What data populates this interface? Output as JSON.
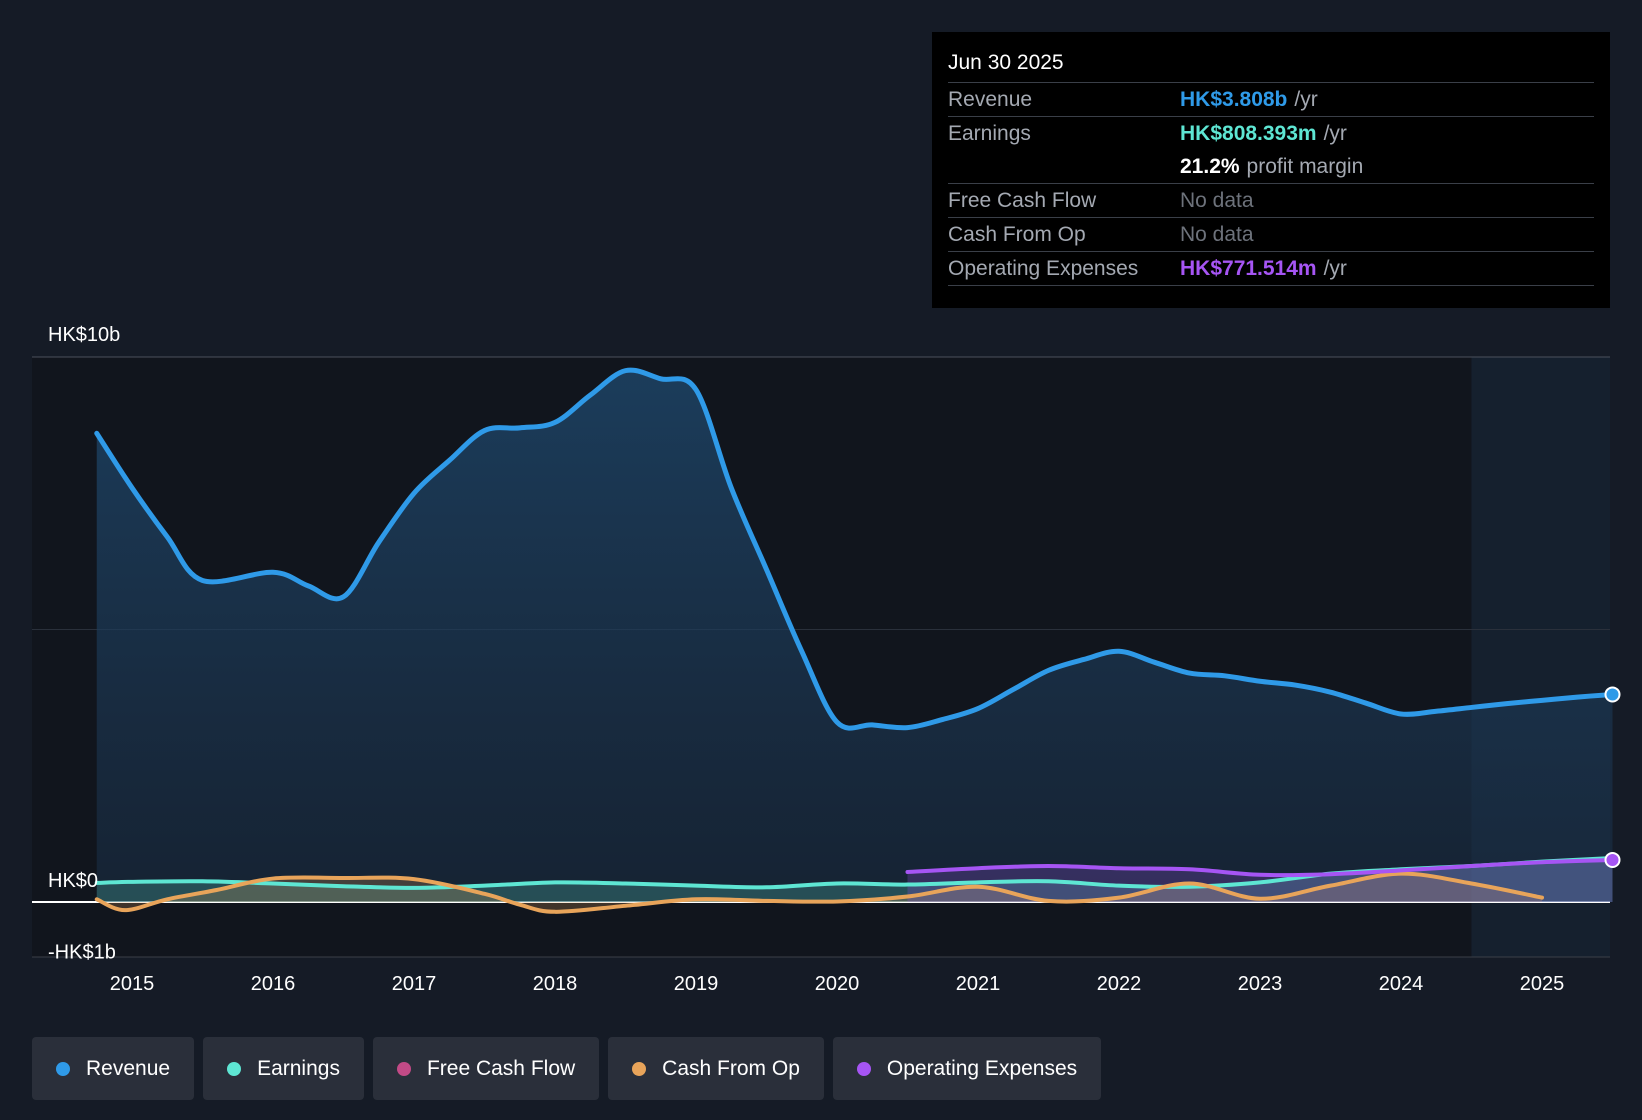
{
  "tooltip": {
    "date": "Jun 30 2025",
    "rows": [
      {
        "label": "Revenue",
        "value": "HK$3.808b",
        "unit": "/yr",
        "color": "#2f9ae8"
      },
      {
        "label": "Earnings",
        "value": "HK$808.393m",
        "unit": "/yr",
        "color": "#5ee6d3"
      },
      {
        "label": "",
        "value": "21.2%",
        "unit": "profit margin",
        "color": "#ffffff"
      },
      {
        "label": "Free Cash Flow",
        "value": "No data",
        "unit": "",
        "color": "#6d727b"
      },
      {
        "label": "Cash From Op",
        "value": "No data",
        "unit": "",
        "color": "#6d727b"
      },
      {
        "label": "Operating Expenses",
        "value": "HK$771.514m",
        "unit": "/yr",
        "color": "#a655f4"
      }
    ]
  },
  "legend": [
    {
      "label": "Revenue",
      "color": "#2f9ae8"
    },
    {
      "label": "Earnings",
      "color": "#5ee6d3"
    },
    {
      "label": "Free Cash Flow",
      "color": "#c24a86"
    },
    {
      "label": "Cash From Op",
      "color": "#e8a45a"
    },
    {
      "label": "Operating Expenses",
      "color": "#a655f4"
    }
  ],
  "chart_data": {
    "type": "line",
    "y_tick_labels": [
      {
        "label": "HK$10b",
        "value": 10
      },
      {
        "label": "HK$0",
        "value": 0
      },
      {
        "label": "-HK$1b",
        "value": -1
      }
    ],
    "ylim": [
      -1,
      10
    ],
    "xlim": [
      2014.75,
      2025.5
    ],
    "x_ticks": [
      2015,
      2016,
      2017,
      2018,
      2019,
      2020,
      2021,
      2022,
      2023,
      2024,
      2025
    ],
    "forecast_shading_start": 2024.5,
    "grid": "horizontal",
    "series": [
      {
        "name": "Revenue",
        "color": "#2f9ae8",
        "x": [
          2014.75,
          2015.0,
          2015.25,
          2015.5,
          2016.0,
          2016.25,
          2016.5,
          2016.75,
          2017.0,
          2017.25,
          2017.5,
          2017.75,
          2018.0,
          2018.25,
          2018.5,
          2018.75,
          2019.0,
          2019.25,
          2019.5,
          2019.75,
          2020.0,
          2020.25,
          2020.5,
          2020.75,
          2021.0,
          2021.25,
          2021.5,
          2021.75,
          2022.0,
          2022.25,
          2022.5,
          2022.75,
          2023.0,
          2023.25,
          2023.5,
          2023.75,
          2024.0,
          2024.25,
          2024.5,
          2024.75,
          2025.0,
          2025.25,
          2025.5
        ],
        "values": [
          8.6,
          7.6,
          6.7,
          5.9,
          6.05,
          5.8,
          5.6,
          6.6,
          7.5,
          8.1,
          8.65,
          8.7,
          8.8,
          9.3,
          9.75,
          9.6,
          9.4,
          7.6,
          6.1,
          4.6,
          3.3,
          3.25,
          3.2,
          3.35,
          3.55,
          3.9,
          4.25,
          4.45,
          4.6,
          4.4,
          4.2,
          4.15,
          4.05,
          3.98,
          3.85,
          3.65,
          3.45,
          3.5,
          3.57,
          3.64,
          3.7,
          3.76,
          3.808
        ]
      },
      {
        "name": "Earnings",
        "color": "#5ee6d3",
        "x": [
          2014.75,
          2015.0,
          2015.5,
          2016.0,
          2016.5,
          2017.0,
          2017.5,
          2018.0,
          2018.5,
          2019.0,
          2019.5,
          2020.0,
          2020.5,
          2021.0,
          2021.5,
          2022.0,
          2022.5,
          2023.0,
          2023.5,
          2024.0,
          2024.5,
          2025.0,
          2025.5
        ],
        "values": [
          0.35,
          0.37,
          0.38,
          0.34,
          0.29,
          0.26,
          0.3,
          0.36,
          0.34,
          0.3,
          0.27,
          0.34,
          0.32,
          0.36,
          0.38,
          0.3,
          0.28,
          0.36,
          0.52,
          0.6,
          0.66,
          0.74,
          0.808
        ]
      },
      {
        "name": "Cash From Op",
        "color": "#e8a45a",
        "x": [
          2014.75,
          2014.95,
          2015.25,
          2015.6,
          2016.0,
          2016.5,
          2017.0,
          2017.5,
          2017.75,
          2018.0,
          2018.5,
          2019.0,
          2019.5,
          2020.0,
          2020.5,
          2021.0,
          2021.5,
          2022.0,
          2022.5,
          2023.0,
          2023.5,
          2024.0,
          2024.5,
          2025.0
        ],
        "values": [
          0.05,
          -0.15,
          0.05,
          0.22,
          0.43,
          0.44,
          0.42,
          0.15,
          -0.05,
          -0.18,
          -0.07,
          0.05,
          0.02,
          0.01,
          0.1,
          0.28,
          0.02,
          0.08,
          0.34,
          0.06,
          0.3,
          0.52,
          0.34,
          0.08
        ]
      },
      {
        "name": "Operating Expenses",
        "color": "#a655f4",
        "x": [
          2020.5,
          2021.0,
          2021.5,
          2022.0,
          2022.5,
          2023.0,
          2023.5,
          2024.0,
          2024.5,
          2025.0,
          2025.5
        ],
        "values": [
          0.55,
          0.62,
          0.66,
          0.62,
          0.6,
          0.5,
          0.51,
          0.58,
          0.66,
          0.73,
          0.7715
        ]
      }
    ]
  }
}
